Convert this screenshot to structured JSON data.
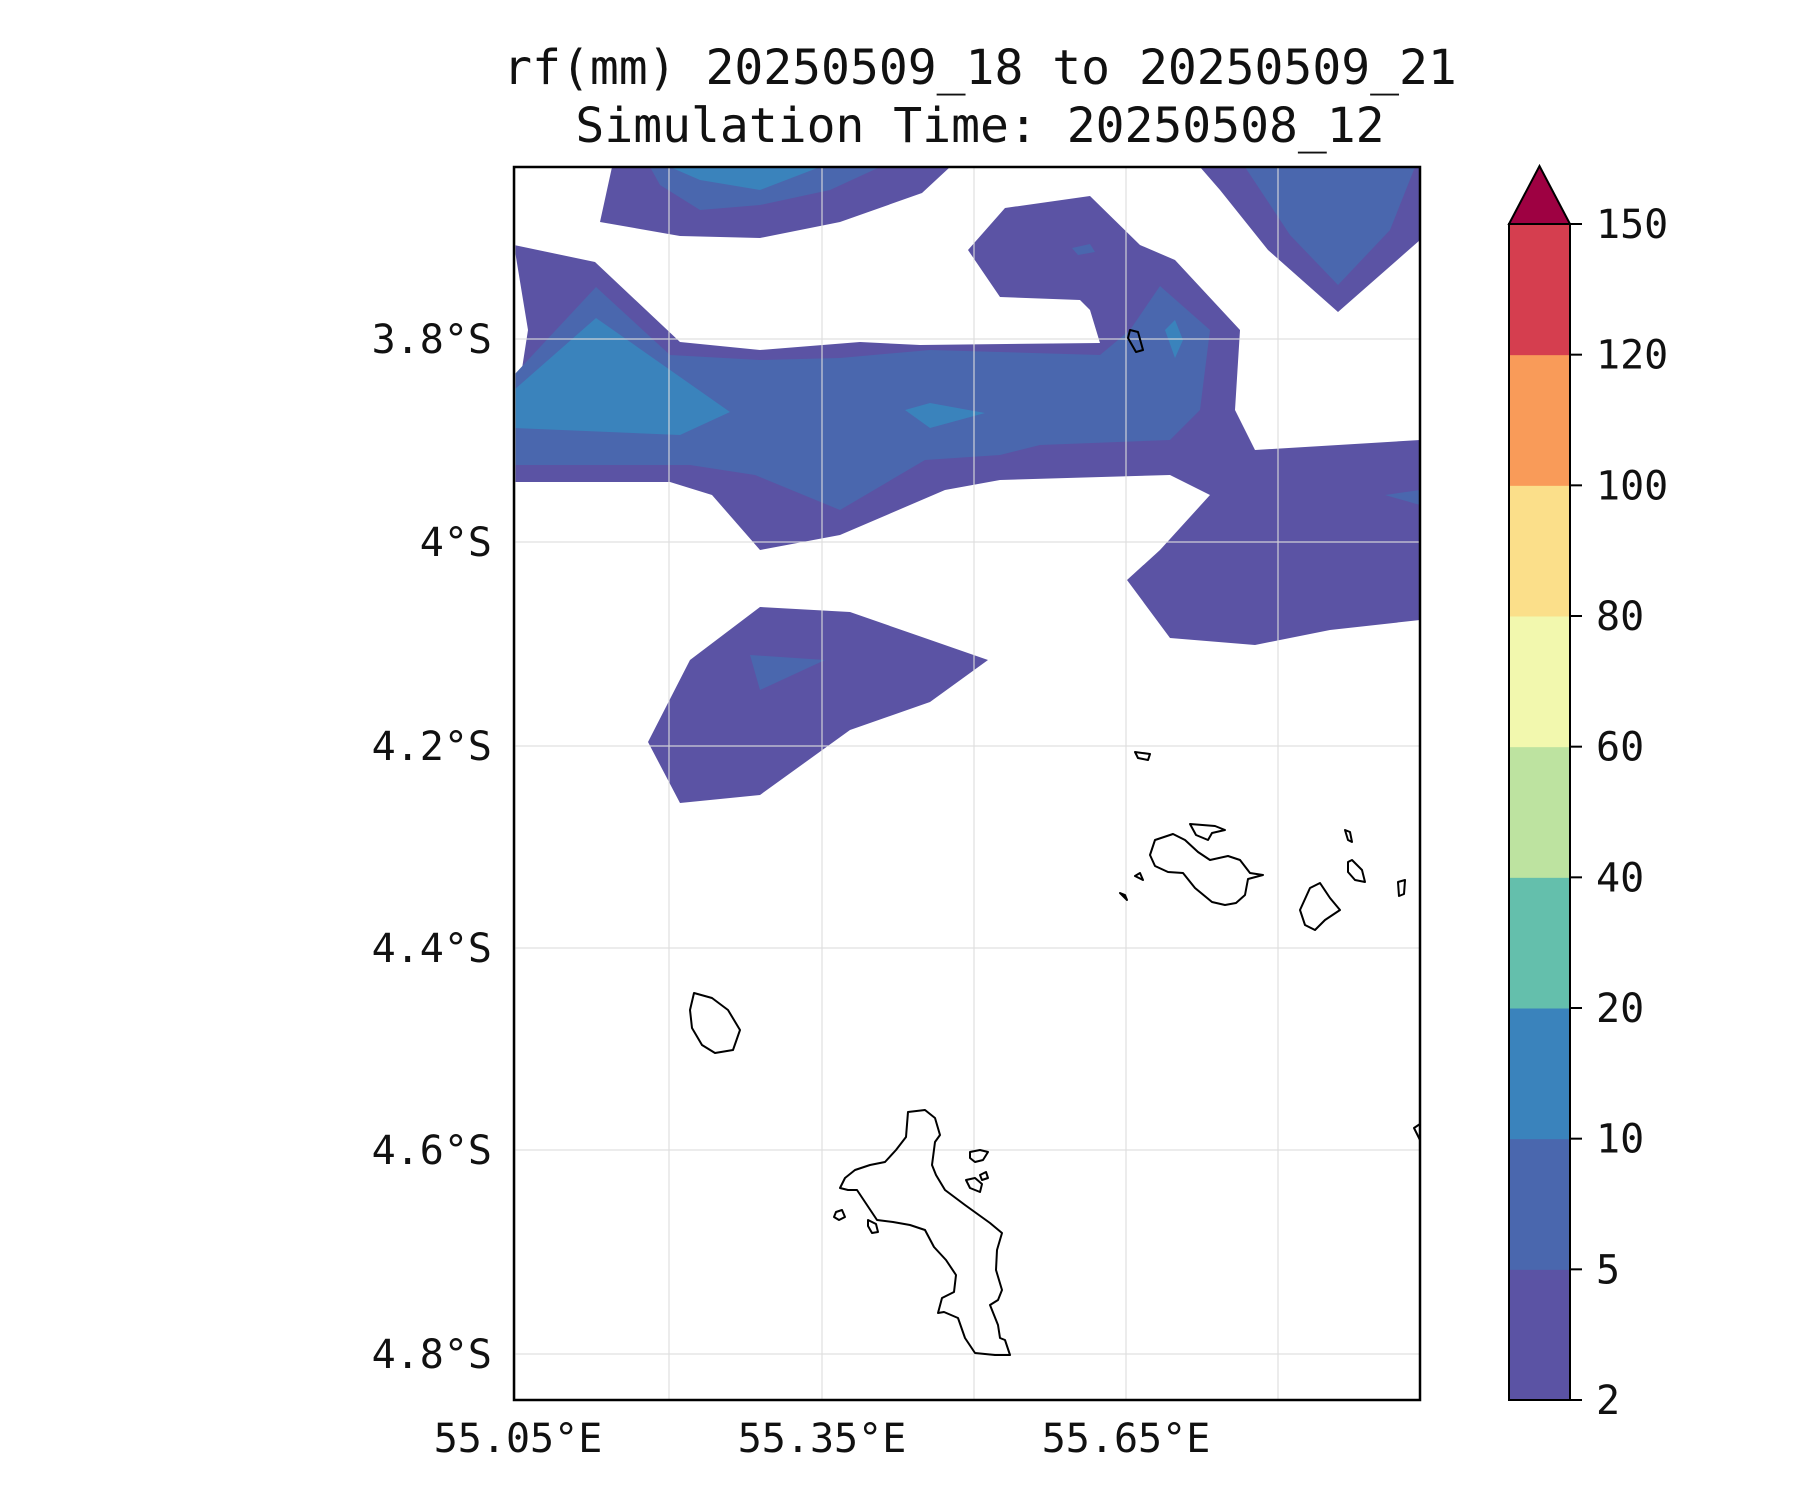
{
  "title": {
    "line1": "rf(mm) 20250509_18 to 20250509_21",
    "line2": "Simulation Time: 20250508_12"
  },
  "map": {
    "lat_labels": [
      "3.8°S",
      "4°S",
      "4.2°S",
      "4.4°S",
      "4.6°S",
      "4.8°S"
    ],
    "lon_labels": [
      "55.05°E",
      "55.35°E",
      "55.65°E"
    ],
    "gridlines": "on",
    "land_outline_color": "#000000",
    "variable": "rf(mm)"
  },
  "colorbar": {
    "ticks": [
      "2",
      "5",
      "10",
      "20",
      "40",
      "60",
      "80",
      "100",
      "120",
      "150"
    ],
    "colors": [
      "#5b53a4",
      "#4a67ae",
      "#3a83bc",
      "#64bfac",
      "#bde3a0",
      "#f2f8ae",
      "#fbdf8a",
      "#f99b59",
      "#d53e4f"
    ],
    "extend_color": "#9e0142",
    "extend": "max"
  }
}
